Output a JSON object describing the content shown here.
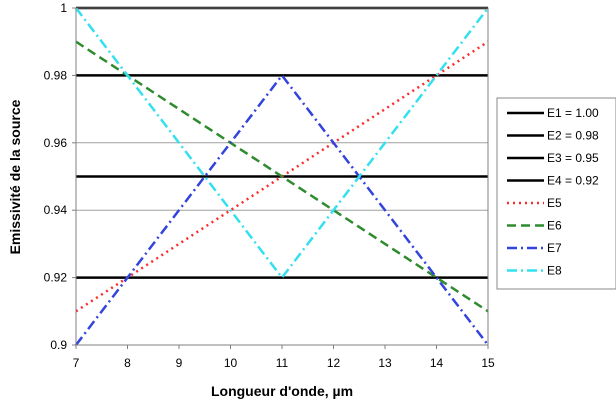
{
  "chart_data": {
    "type": "line",
    "title": "",
    "xlabel": "Longueur d'onde, µm",
    "ylabel": "Emissivité de la source",
    "xlim": [
      7,
      15
    ],
    "ylim": [
      0.9,
      1.0
    ],
    "x_ticks": [
      7,
      8,
      9,
      10,
      11,
      12,
      13,
      14,
      15
    ],
    "y_ticks": [
      0.9,
      0.92,
      0.94,
      0.96,
      0.98,
      1
    ],
    "y_tick_labels": [
      "0.9",
      "0.92",
      "0.94",
      "0.96",
      "0.98",
      "1"
    ],
    "grid": "horizontal",
    "legend_position": "right",
    "series": [
      {
        "name": "E1 = 1.00",
        "color": "#000000",
        "dash": "solid",
        "x": [
          7,
          15
        ],
        "y": [
          1.0,
          1.0
        ]
      },
      {
        "name": "E2 = 0.98",
        "color": "#000000",
        "dash": "solid",
        "x": [
          7,
          15
        ],
        "y": [
          0.98,
          0.98
        ]
      },
      {
        "name": "E3 = 0.95",
        "color": "#000000",
        "dash": "solid",
        "x": [
          7,
          15
        ],
        "y": [
          0.95,
          0.95
        ]
      },
      {
        "name": "E4 = 0.92",
        "color": "#000000",
        "dash": "solid",
        "x": [
          7,
          15
        ],
        "y": [
          0.92,
          0.92
        ]
      },
      {
        "name": "E5",
        "color": "#ff2a2a",
        "dash": "dot",
        "x": [
          7,
          15
        ],
        "y": [
          0.91,
          0.99
        ]
      },
      {
        "name": "E6",
        "color": "#2e8b2e",
        "dash": "dash",
        "x": [
          7,
          15
        ],
        "y": [
          0.99,
          0.91
        ]
      },
      {
        "name": "E7",
        "color": "#3344dd",
        "dash": "dashdot",
        "x": [
          7,
          11,
          15
        ],
        "y": [
          0.9,
          0.98,
          0.9
        ]
      },
      {
        "name": "E8",
        "color": "#33e0ee",
        "dash": "dashdot",
        "x": [
          7,
          11,
          15
        ],
        "y": [
          1.0,
          0.92,
          1.0
        ]
      }
    ]
  }
}
